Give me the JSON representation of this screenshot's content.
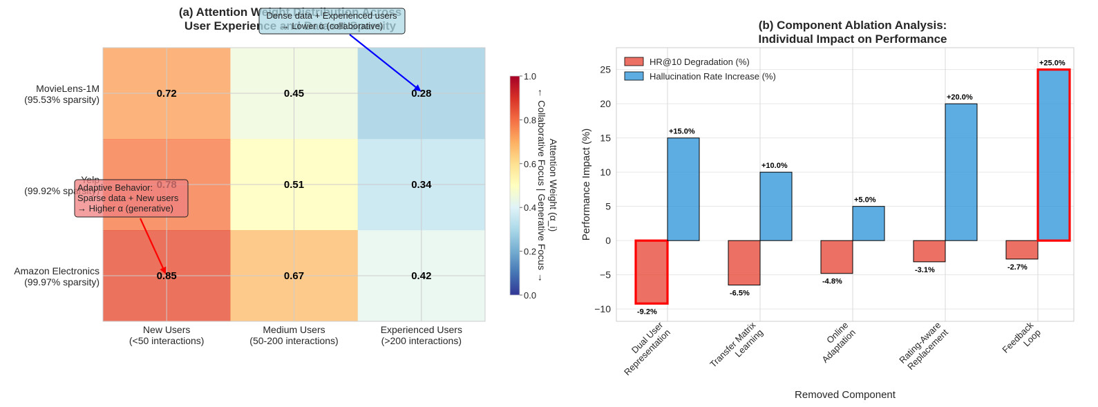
{
  "chart_data": [
    {
      "type": "heatmap",
      "title_lines": [
        "(a) Attention Weight Distribution Across",
        "User Experience and Dataset Sparsity"
      ],
      "rows": [
        [
          "MovieLens-1M",
          "(95.53% sparsity)"
        ],
        [
          "Yelp",
          "(99.92% sparsity)"
        ],
        [
          "Amazon Electronics",
          "(99.97% sparsity)"
        ]
      ],
      "columns": [
        [
          "New Users",
          "(<50 interactions)"
        ],
        [
          "Medium Users",
          "(50-200 interactions)"
        ],
        [
          "Experienced Users",
          "(>200 interactions)"
        ]
      ],
      "values": [
        [
          0.72,
          0.45,
          0.28
        ],
        [
          0.78,
          0.51,
          0.34
        ],
        [
          0.85,
          0.67,
          0.42
        ]
      ],
      "value_labels": [
        [
          "0.72",
          "0.45",
          "0.28"
        ],
        [
          "0.78",
          "0.51",
          "0.34"
        ],
        [
          "0.85",
          "0.67",
          "0.42"
        ]
      ],
      "colormap": "RdYlBu_r",
      "vmin": 0.0,
      "vmax": 1.0,
      "colorbar": {
        "ticks": [
          "0.0",
          "0.2",
          "0.4",
          "0.6",
          "0.8",
          "1.0"
        ],
        "label": "Attention Weight (α_i)",
        "sublabel": "← Collaborative Focus | Generative Focus →"
      },
      "annotations": [
        {
          "lines": [
            "Adaptive Behavior:",
            "Sparse data + New users",
            "→ Higher α (generative)"
          ],
          "target_row": 2,
          "target_col": 0,
          "box_color": "#f08080",
          "arrow_color": "#ff0000"
        },
        {
          "lines": [
            "Dense data + Experienced users",
            "→ Lower α (collaborative)"
          ],
          "target_row": 0,
          "target_col": 2,
          "box_color": "#add8e6",
          "arrow_color": "#0000ff"
        }
      ]
    },
    {
      "type": "bar",
      "title_lines": [
        "(b) Component Ablation Analysis:",
        "Individual Impact on Performance"
      ],
      "categories": [
        [
          "Dual User",
          "Representation"
        ],
        [
          "Transfer Matrix",
          "Learning"
        ],
        [
          "Online",
          "Adaptation"
        ],
        [
          "Rating-Aware",
          "Replacement"
        ],
        [
          "Feedback",
          "Loop"
        ]
      ],
      "series": [
        {
          "name": "HR@10 Degradation (%)",
          "color": "#e74c3c",
          "values": [
            -9.2,
            -6.5,
            -4.8,
            -3.1,
            -2.7
          ],
          "labels": [
            "-9.2%",
            "-6.5%",
            "-4.8%",
            "-3.1%",
            "-2.7%"
          ]
        },
        {
          "name": "Hallucination Rate Increase (%)",
          "color": "#3498db",
          "values": [
            15.0,
            10.0,
            5.0,
            20.0,
            25.0
          ],
          "labels": [
            "+15.0%",
            "+10.0%",
            "+5.0%",
            "+20.0%",
            "+25.0%"
          ]
        }
      ],
      "highlighted": [
        {
          "series": 0,
          "index": 0
        },
        {
          "series": 1,
          "index": 4
        }
      ],
      "highlight_color": "#ff0000",
      "ylim": [
        -11.8,
        28.2
      ],
      "yticks": [
        -10,
        -5,
        0,
        5,
        10,
        15,
        20,
        25
      ],
      "xlabel": "Removed Component",
      "ylabel": "Performance Impact (%)",
      "legend_position": "upper-left",
      "grid": true
    }
  ]
}
